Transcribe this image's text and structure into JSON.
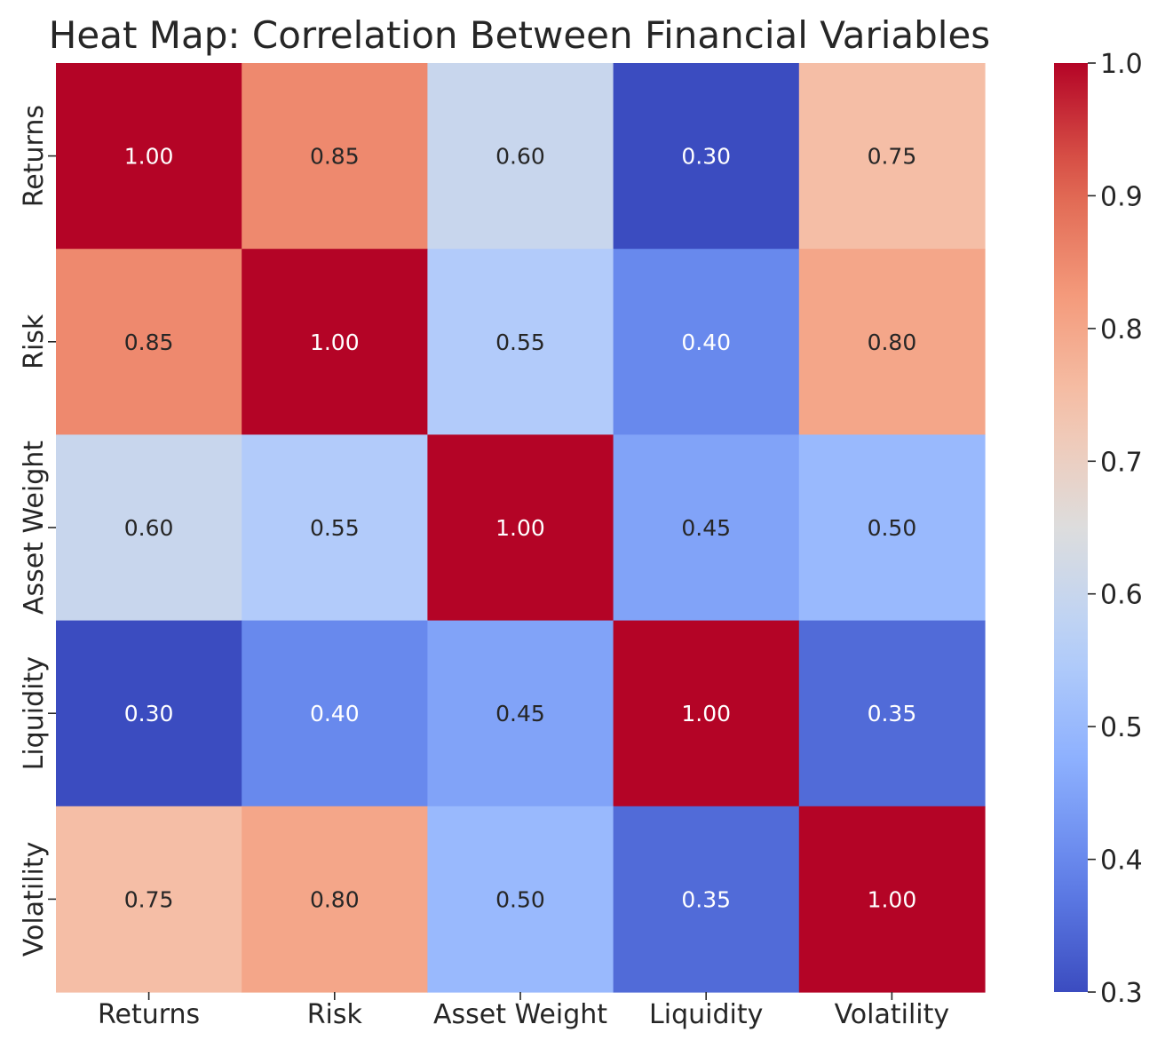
{
  "chart_data": {
    "type": "heatmap",
    "title": "Heat Map: Correlation Between Financial Variables",
    "x_categories": [
      "Returns",
      "Risk",
      "Asset Weight",
      "Liquidity",
      "Volatility"
    ],
    "y_categories": [
      "Returns",
      "Risk",
      "Asset Weight",
      "Liquidity",
      "Volatility"
    ],
    "values": [
      [
        1.0,
        0.85,
        0.6,
        0.3,
        0.75
      ],
      [
        0.85,
        1.0,
        0.55,
        0.4,
        0.8
      ],
      [
        0.6,
        0.55,
        1.0,
        0.45,
        0.5
      ],
      [
        0.3,
        0.4,
        0.45,
        1.0,
        0.35
      ],
      [
        0.75,
        0.8,
        0.5,
        0.35,
        1.0
      ]
    ],
    "value_labels": [
      [
        "1.00",
        "0.85",
        "0.60",
        "0.30",
        "0.75"
      ],
      [
        "0.85",
        "1.00",
        "0.55",
        "0.40",
        "0.80"
      ],
      [
        "0.60",
        "0.55",
        "1.00",
        "0.45",
        "0.50"
      ],
      [
        "0.30",
        "0.40",
        "0.45",
        "1.00",
        "0.35"
      ],
      [
        "0.75",
        "0.80",
        "0.50",
        "0.35",
        "1.00"
      ]
    ],
    "colormap": "coolwarm",
    "vmin": 0.3,
    "vmax": 1.0,
    "colorbar": {
      "ticks": [
        0.3,
        0.4,
        0.5,
        0.6,
        0.7,
        0.8,
        0.9,
        1.0
      ],
      "tick_labels": [
        "0.3",
        "0.4",
        "0.5",
        "0.6",
        "0.7",
        "0.8",
        "0.9",
        "1.0"
      ],
      "placement": "right"
    },
    "annotated": true,
    "grid": false
  }
}
